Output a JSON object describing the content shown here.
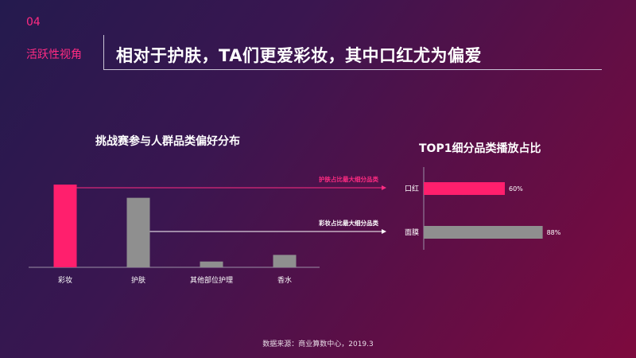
{
  "header": {
    "section_number": "04",
    "section_label": "活跃性视角",
    "title": "相对于护肤，TA们更爱彩妆，其中口红尤为偏爱"
  },
  "chart_data": [
    {
      "type": "bar",
      "title": "挑战赛参与人群品类偏好分布",
      "categories": [
        "彩妆",
        "护肤",
        "其他部位护理",
        "香水"
      ],
      "values": [
        100,
        84,
        7,
        15
      ],
      "colors": [
        "#ff1f6d",
        "#8f8f8f",
        "#8f8f8f",
        "#8f8f8f"
      ],
      "annotations": [
        "护肤占比最大细分品类",
        "彩妆占比最大细分品类"
      ],
      "annotation_color": "#ff2b82",
      "grid": false
    },
    {
      "type": "bar",
      "orientation": "horizontal",
      "title": "TOP1细分品类播放占比",
      "categories": [
        "口红",
        "面膜"
      ],
      "values": [
        60,
        88
      ],
      "value_labels": [
        "60%",
        "88%"
      ],
      "colors": [
        "#ff1f6d",
        "#8f8f8f"
      ],
      "xlim": [
        0,
        100
      ],
      "grid": false
    }
  ],
  "footer": {
    "source": "数据来源：商业算数中心，2019.3"
  }
}
